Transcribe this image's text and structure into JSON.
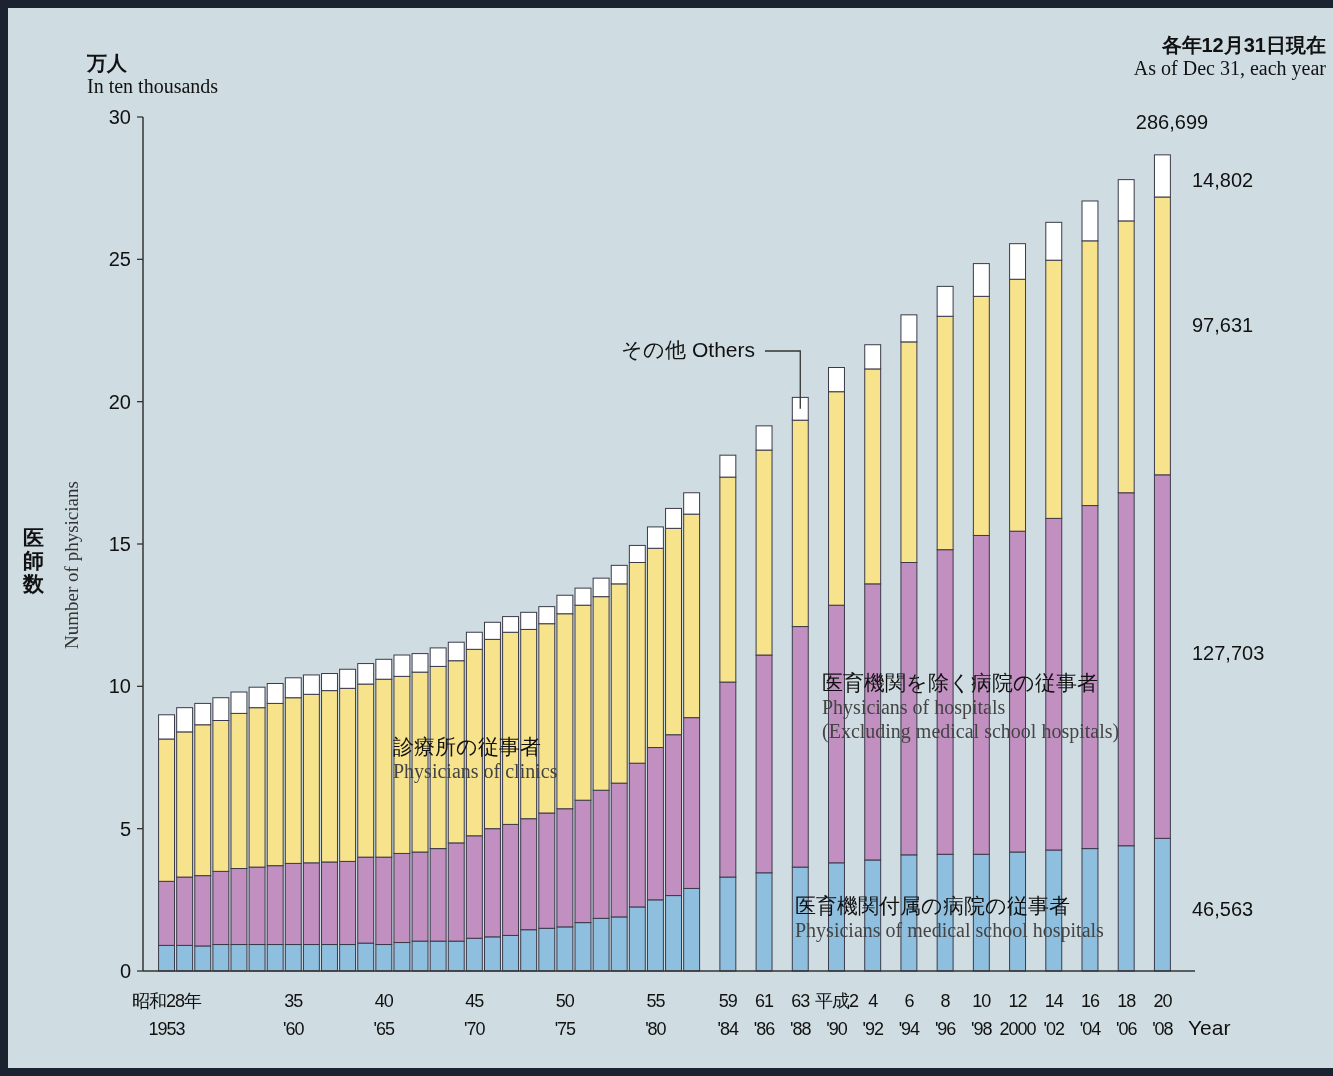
{
  "chart_data": {
    "type": "bar",
    "stacked": true,
    "annotations": [
      "万人\nIn ten thousands",
      "各年12月31日現在\nAs of Dec 31, each year",
      "286,699",
      "14,802",
      "97,631",
      "127,703",
      "46,563"
    ],
    "xlabel": "Year",
    "ylabel": "医師数\nNumber of physicians",
    "categories": [
      "昭和28年\n1953",
      null,
      null,
      null,
      null,
      null,
      null,
      "35\n'60",
      null,
      null,
      null,
      null,
      "40\n'65",
      null,
      null,
      null,
      null,
      "45\n'70",
      null,
      null,
      null,
      null,
      "50\n'75",
      null,
      null,
      null,
      null,
      "55\n'80",
      null,
      null,
      null,
      "59\n'84",
      null,
      "61\n'86",
      null,
      "63\n'88",
      null,
      "平成2\n'90",
      null,
      "4\n'92",
      null,
      "6\n'94",
      null,
      "8\n'96",
      null,
      "10\n'98",
      null,
      "12\n2000",
      null,
      "14\n'02",
      null,
      "16\n'04",
      null,
      "18\n'06",
      null,
      "20\n'08"
    ],
    "ylim": [
      0,
      30
    ],
    "yticks": [
      0,
      5,
      10,
      15,
      20,
      25,
      30
    ],
    "series": [
      {
        "name": "医育機関付属の病院の従事者\nPhysicians of medical school hospitals",
        "color": "#8fbfdf",
        "values": [
          0.9,
          0.9,
          0.88,
          0.93,
          0.93,
          0.93,
          0.93,
          0.93,
          0.93,
          0.93,
          0.93,
          0.98,
          0.93,
          1.0,
          1.05,
          1.05,
          1.05,
          1.15,
          1.2,
          1.25,
          1.45,
          1.5,
          1.55,
          1.7,
          1.85,
          1.9,
          2.25,
          2.5,
          2.65,
          2.9,
          null,
          3.3,
          null,
          3.45,
          null,
          3.65,
          null,
          3.8,
          null,
          3.9,
          null,
          4.08,
          null,
          4.1,
          null,
          4.1,
          null,
          4.18,
          null,
          4.25,
          null,
          4.3,
          null,
          4.4,
          null,
          4.66
        ]
      },
      {
        "name": "医育機関を除く病院の従事者\nPhysicians of hospitals\n(Excluding medical school hospitals)",
        "color": "#c190c0",
        "values": [
          2.25,
          2.4,
          2.47,
          2.57,
          2.67,
          2.72,
          2.77,
          2.85,
          2.87,
          2.9,
          2.92,
          3.02,
          3.07,
          3.13,
          3.13,
          3.25,
          3.45,
          3.6,
          3.8,
          3.9,
          3.9,
          4.05,
          4.15,
          4.3,
          4.5,
          4.7,
          5.05,
          5.35,
          5.65,
          6.0,
          null,
          6.85,
          null,
          7.65,
          null,
          8.45,
          null,
          9.05,
          null,
          9.7,
          null,
          10.27,
          null,
          10.7,
          null,
          11.2,
          null,
          11.27,
          null,
          11.65,
          null,
          12.05,
          null,
          12.4,
          null,
          12.77
        ]
      },
      {
        "name": "診療所の従事者\nPhysicians of clinics",
        "color": "#f6e38c",
        "values": [
          5.0,
          5.1,
          5.3,
          5.3,
          5.45,
          5.6,
          5.7,
          5.82,
          5.92,
          6.02,
          6.08,
          6.08,
          6.25,
          6.22,
          6.32,
          6.4,
          6.4,
          6.55,
          6.65,
          6.75,
          6.65,
          6.65,
          6.85,
          6.85,
          6.8,
          7.0,
          7.05,
          7.0,
          7.25,
          7.15,
          null,
          7.2,
          null,
          7.2,
          null,
          7.25,
          null,
          7.5,
          null,
          7.55,
          null,
          7.75,
          null,
          8.2,
          null,
          8.4,
          null,
          8.85,
          null,
          9.07,
          null,
          9.3,
          null,
          9.55,
          null,
          9.76
        ]
      },
      {
        "name": "その他 Others",
        "color": "#ffffff",
        "values": [
          0.85,
          0.85,
          0.75,
          0.8,
          0.75,
          0.72,
          0.7,
          0.7,
          0.68,
          0.6,
          0.67,
          0.72,
          0.7,
          0.75,
          0.65,
          0.65,
          0.65,
          0.6,
          0.6,
          0.55,
          0.6,
          0.6,
          0.65,
          0.6,
          0.65,
          0.65,
          0.6,
          0.75,
          0.7,
          0.75,
          null,
          0.77,
          null,
          0.85,
          null,
          0.8,
          null,
          0.85,
          null,
          0.85,
          null,
          0.95,
          null,
          1.05,
          null,
          1.15,
          null,
          1.25,
          null,
          1.33,
          null,
          1.4,
          null,
          1.45,
          null,
          1.48
        ]
      }
    ]
  }
}
